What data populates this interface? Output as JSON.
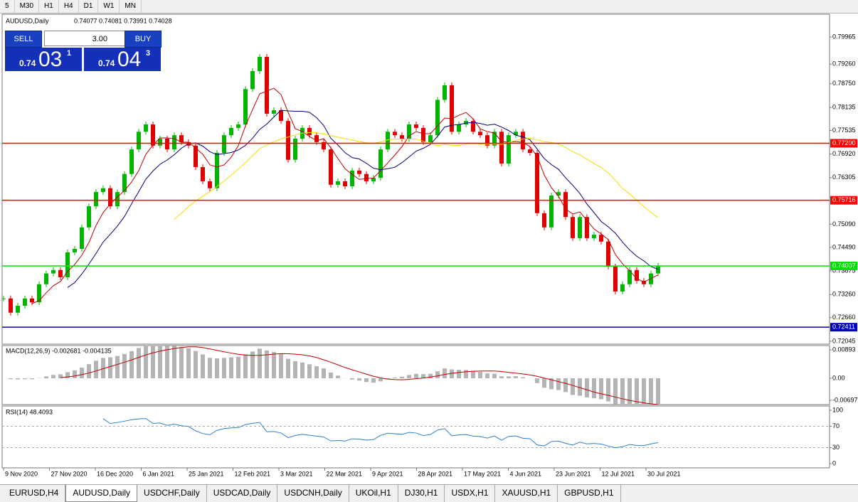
{
  "toolbar": {
    "timeframes": [
      "5",
      "M30",
      "H1",
      "H4",
      "D1",
      "W1",
      "MN"
    ]
  },
  "trade_panel": {
    "sell": "SELL",
    "buy": "BUY",
    "volume": "3.00",
    "bid": {
      "prefix": "0.74",
      "big": "03",
      "small": "1"
    },
    "ask": {
      "prefix": "0.74",
      "big": "04",
      "small": "3"
    }
  },
  "chart_data": [
    {
      "type": "candlestick",
      "symbol": "AUDUSD,Daily",
      "quote": "0.74077 0.74081 0.73991 0.74028",
      "up_color": "#00b400",
      "down_color": "#e00000",
      "closes": [
        0.7316,
        0.7279,
        0.7297,
        0.7316,
        0.7306,
        0.7353,
        0.7381,
        0.739,
        0.7371,
        0.7436,
        0.7445,
        0.7501,
        0.7556,
        0.7593,
        0.7603,
        0.7556,
        0.7593,
        0.764,
        0.7704,
        0.775,
        0.7769,
        0.7714,
        0.7732,
        0.7704,
        0.7741,
        0.7723,
        0.7714,
        0.7658,
        0.7621,
        0.7603,
        0.7695,
        0.7741,
        0.776,
        0.7769,
        0.7861,
        0.7908,
        0.7945,
        0.7797,
        0.7806,
        0.7778,
        0.7677,
        0.7732,
        0.776,
        0.7741,
        0.7723,
        0.7704,
        0.7612,
        0.7621,
        0.7608,
        0.7649,
        0.764,
        0.7621,
        0.763,
        0.7704,
        0.775,
        0.7741,
        0.7732,
        0.7769,
        0.776,
        0.7723,
        0.7741,
        0.7833,
        0.7871,
        0.775,
        0.7769,
        0.7778,
        0.775,
        0.7741,
        0.7714,
        0.775,
        0.7667,
        0.7741,
        0.775,
        0.7704,
        0.7695,
        0.7538,
        0.7501,
        0.7584,
        0.7593,
        0.7528,
        0.7473,
        0.7528,
        0.7473,
        0.7482,
        0.7464,
        0.7399,
        0.7334,
        0.7353,
        0.739,
        0.7362,
        0.7353,
        0.7381,
        0.7401
      ],
      "moving_averages": [
        {
          "period": 5,
          "color": "#c00000"
        },
        {
          "period": 10,
          "color": "#000080"
        },
        {
          "period": 25,
          "color": "#f0e000"
        }
      ],
      "ylim": [
        0.7197,
        0.8056
      ],
      "yticks": [
        0.79965,
        {
          "value": 0.7926,
          "label": "0.79260"
        },
        {
          "value": 0.7875,
          "label": "0.78750"
        },
        0.78135,
        0.77535,
        {
          "value": 0.7692,
          "label": "0.76920"
        },
        0.76305,
        {
          "value": 0.7509,
          "label": "0.75090"
        },
        {
          "value": 0.7449,
          "label": "0.74490"
        },
        0.73875,
        {
          "value": 0.7326,
          "label": "0.73260"
        },
        {
          "value": 0.7266,
          "label": "0.72660"
        },
        0.72045
      ],
      "levels": [
        {
          "value": 0.772,
          "label": "0.77200",
          "color": "#ff0000"
        },
        {
          "value": 0.75716,
          "label": "0.75716",
          "color": "#ff0000"
        },
        {
          "value": 0.74007,
          "label": "0.74007",
          "color": "#00e000"
        },
        {
          "value": 0.72411,
          "label": "0.72411",
          "color": "#0000c0"
        }
      ],
      "x_labels": [
        "9 Nov 2020",
        "27 Nov 2020",
        "16 Dec 2020",
        "6 Jan 2021",
        "25 Jan 2021",
        "12 Feb 2021",
        "3 Mar 2021",
        "22 Mar 2021",
        "9 Apr 2021",
        "28 Apr 2021",
        "17 May 2021",
        "4 Jun 2021",
        "23 Jun 2021",
        "12 Jul 2021",
        "30 Jul 2021"
      ]
    },
    {
      "type": "macd",
      "title": "MACD(12,26,9) -0.002681 -0.004135",
      "fast": 12,
      "slow": 26,
      "signal": 9,
      "hist_color": "#b4b4b4",
      "signal_color": "#c00000",
      "ylim": [
        -0.0083,
        0.0103
      ],
      "yticks": [
        0.00893,
        {
          "value": 0,
          "label": "0.00"
        },
        -0.00697
      ]
    },
    {
      "type": "rsi",
      "title": "RSI(14) 48.4093",
      "period": 14,
      "color": "#2f7fd0",
      "ylim": [
        -8,
        108
      ],
      "yticks": [
        100,
        70,
        30,
        0
      ],
      "levels": [
        70,
        30
      ]
    }
  ],
  "tabs": [
    "EURUSD,H4",
    "AUDUSD,Daily",
    "USDCHF,Daily",
    "USDCAD,Daily",
    "USDCNH,Daily",
    "UKOil,H1",
    "DJ30,H1",
    "USDX,H1",
    "XAUUSD,H1",
    "GBPUSD,H1"
  ]
}
